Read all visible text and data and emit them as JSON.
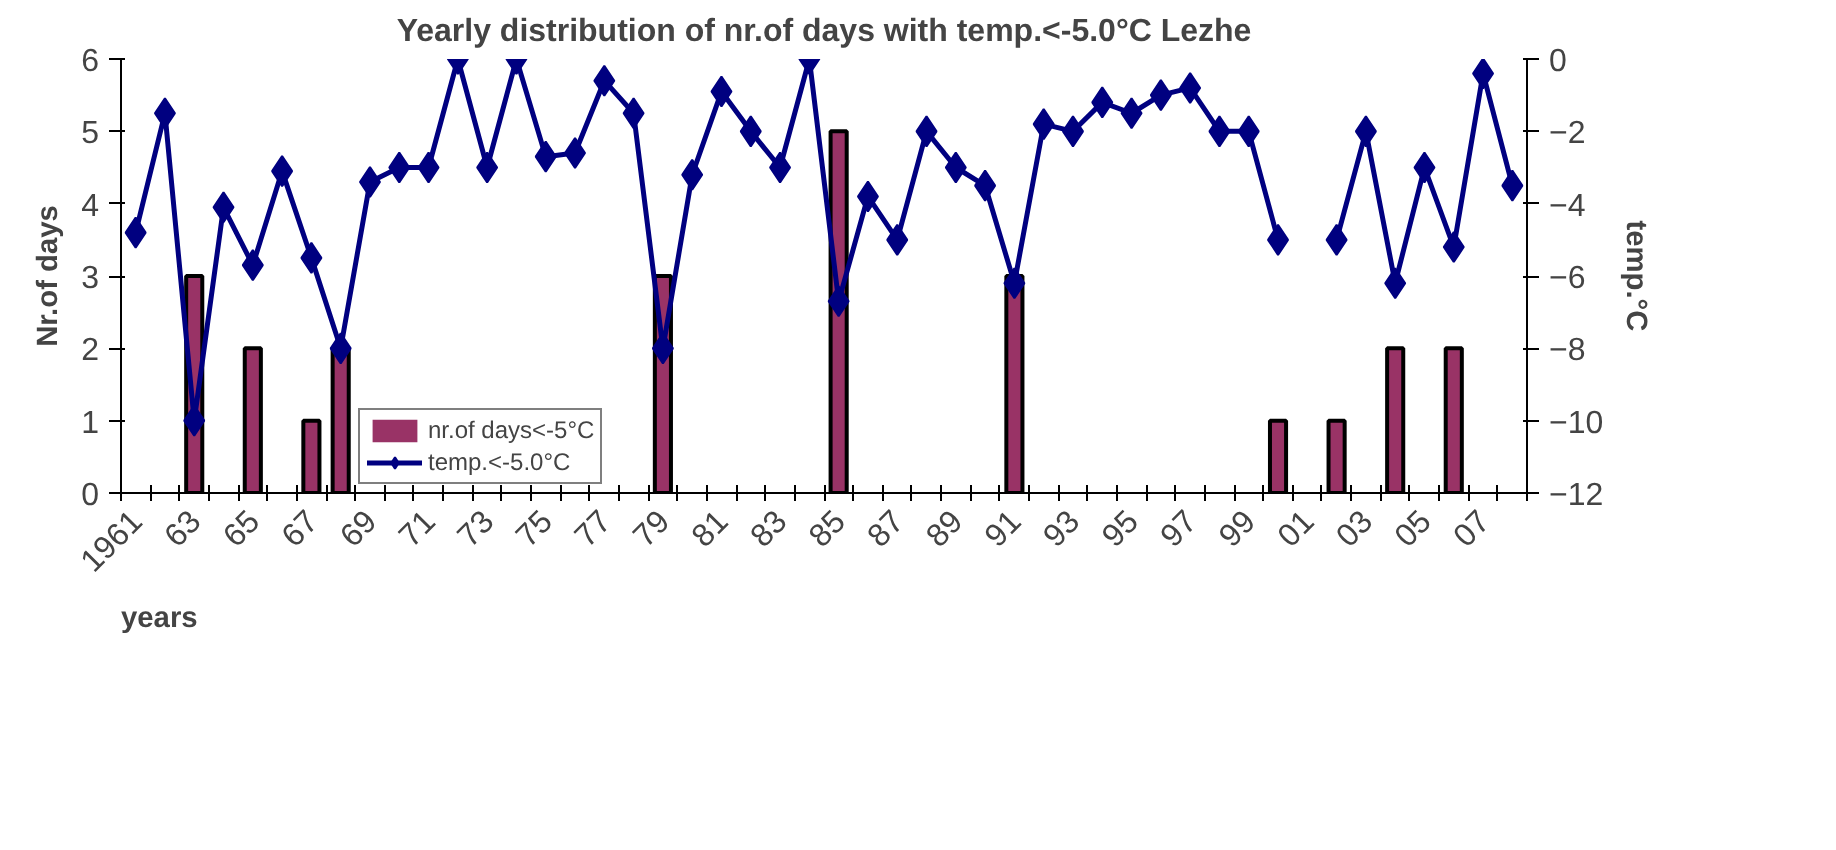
{
  "chart_data": {
    "type": "bar",
    "title": "Yearly distribution of nr.of days with temp.<-5.0°C Lezhe",
    "xlabel": "years",
    "ylabel": "Nr.of days",
    "y2label": "temp.°C",
    "categories": [
      "1961",
      null,
      "63",
      null,
      "65",
      null,
      "67",
      null,
      "69",
      null,
      "71",
      null,
      "73",
      null,
      "75",
      null,
      "77",
      null,
      "79",
      null,
      "81",
      null,
      "83",
      null,
      "85",
      null,
      "87",
      null,
      "89",
      null,
      "91",
      null,
      "93",
      null,
      "95",
      null,
      "97",
      null,
      "99",
      null,
      "01",
      null,
      "03",
      null,
      "05",
      null,
      "07",
      null
    ],
    "series": [
      {
        "name": "nr.of days<-5°C",
        "color": "#993366",
        "values": [
          0,
          0,
          3,
          0,
          2,
          0,
          1,
          2,
          0,
          0,
          0,
          0,
          0,
          0,
          0,
          0,
          0,
          0,
          3,
          0,
          0,
          0,
          0,
          0,
          5,
          0,
          0,
          0,
          0,
          0,
          3,
          0,
          0,
          0,
          0,
          0,
          0,
          0,
          0,
          1,
          0,
          1,
          0,
          2,
          0,
          2,
          0,
          0
        ]
      },
      {
        "name": "temp.<-5.0°C",
        "type": "line",
        "axis": "y2",
        "color": "#000080",
        "marker": "diamond",
        "values": [
          -4.8,
          -1.5,
          -10,
          -4.1,
          -5.7,
          -3.1,
          -5.5,
          -8,
          -3.4,
          -3,
          -3,
          0,
          -3,
          0,
          -2.7,
          -2.6,
          -0.6,
          -1.5,
          -8,
          -3.2,
          -0.9,
          -2,
          -3,
          0,
          -6.7,
          -3.8,
          -5,
          -2,
          -3,
          -3.5,
          -6.2,
          -1.8,
          -2,
          -1.2,
          -1.5,
          -1.0,
          -0.8,
          -2,
          -2,
          -5,
          null,
          -5,
          -2,
          -6.2,
          -3,
          -5.2,
          -0.4,
          -3.5
        ]
      }
    ],
    "ylim": [
      0,
      6
    ],
    "yticks": [
      0,
      1,
      2,
      3,
      4,
      5,
      6
    ],
    "y2lim": [
      -12,
      0
    ],
    "y2ticks": [
      -12,
      -10,
      -8,
      -6,
      -4,
      -2,
      0
    ],
    "grid": false,
    "legend": "bottom"
  }
}
